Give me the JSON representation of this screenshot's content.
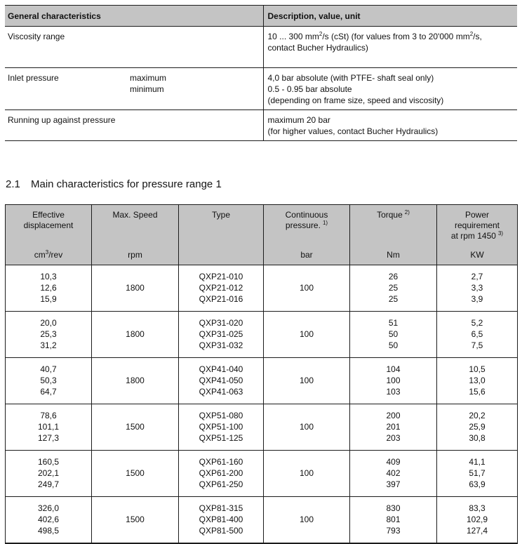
{
  "general_table": {
    "header": {
      "col1": "General characteristics",
      "col2": "Description, value, unit"
    },
    "viscosity": {
      "label": "Viscosity range",
      "value_line1_a": "10 ... 300 mm",
      "value_line1_sup1": "2",
      "value_line1_b": "/s (cSt) (for values from 3 to 20'000 mm",
      "value_line1_sup2": "2",
      "value_line1_c": "/s,",
      "value_line2": "contact Bucher Hydraulics)"
    },
    "inlet": {
      "label": "Inlet pressure",
      "sub_labels": [
        "maximum",
        "minimum"
      ],
      "value_lines": [
        "4,0 bar absolute (with PTFE- shaft seal only)",
        "0.5 - 0.95 bar absolute",
        "(depending on frame size, speed and viscosity)"
      ]
    },
    "running": {
      "label": "Running up against pressure",
      "value_lines": [
        "maximum 20 bar",
        "(for higher values, contact Bucher Hydraulics)"
      ]
    }
  },
  "section": {
    "number": "2.1",
    "title": "Main characteristics for pressure range 1"
  },
  "main_table": {
    "header": {
      "effective": {
        "l1": "Effective",
        "l2": "displacement",
        "unit_base": "cm",
        "unit_sup": "3",
        "unit_rest": "/rev"
      },
      "speed": {
        "l1": "Max. Speed",
        "unit": "rpm"
      },
      "type": {
        "l1": "Type",
        "unit": ""
      },
      "pressure": {
        "l1": "Continuous",
        "l2": "pressure.",
        "sup": "1)",
        "unit": "bar"
      },
      "torque": {
        "l1": "Torque",
        "sup": "2)",
        "unit": "Nm"
      },
      "power": {
        "l1": "Power",
        "l2": "requirement",
        "l3": "at rpm 1450",
        "sup": "3)",
        "unit": "KW"
      }
    },
    "groups": [
      {
        "displacements": [
          "10,3",
          "12,6",
          "15,9"
        ],
        "speed": "1800",
        "types": [
          "QXP21-010",
          "QXP21-012",
          "QXP21-016"
        ],
        "pressure": "100",
        "torques": [
          "26",
          "25",
          "25"
        ],
        "powers": [
          "2,7",
          "3,3",
          "3,9"
        ]
      },
      {
        "displacements": [
          "20,0",
          "25,3",
          "31,2"
        ],
        "speed": "1800",
        "types": [
          "QXP31-020",
          "QXP31-025",
          "QXP31-032"
        ],
        "pressure": "100",
        "torques": [
          "51",
          "50",
          "50"
        ],
        "powers": [
          "5,2",
          "6,5",
          "7,5"
        ]
      },
      {
        "displacements": [
          "40,7",
          "50,3",
          "64,7"
        ],
        "speed": "1800",
        "types": [
          "QXP41-040",
          "QXP41-050",
          "QXP41-063"
        ],
        "pressure": "100",
        "torques": [
          "104",
          "100",
          "103"
        ],
        "powers": [
          "10,5",
          "13,0",
          "15,6"
        ]
      },
      {
        "displacements": [
          "78,6",
          "101,1",
          "127,3"
        ],
        "speed": "1500",
        "types": [
          "QXP51-080",
          "QXP51-100",
          "QXP51-125"
        ],
        "pressure": "100",
        "torques": [
          "200",
          "201",
          "203"
        ],
        "powers": [
          "20,2",
          "25,9",
          "30,8"
        ]
      },
      {
        "displacements": [
          "160,5",
          "202,1",
          "249,7"
        ],
        "speed": "1500",
        "types": [
          "QXP61-160",
          "QXP61-200",
          "QXP61-250"
        ],
        "pressure": "100",
        "torques": [
          "409",
          "402",
          "397"
        ],
        "powers": [
          "41,1",
          "51,7",
          "63,9"
        ]
      },
      {
        "displacements": [
          "326,0",
          "402,6",
          "498,5"
        ],
        "speed": "1500",
        "types": [
          "QXP81-315",
          "QXP81-400",
          "QXP81-500"
        ],
        "pressure": "100",
        "torques": [
          "830",
          "801",
          "793"
        ],
        "powers": [
          "83,3",
          "102,9",
          "127,4"
        ]
      }
    ]
  }
}
